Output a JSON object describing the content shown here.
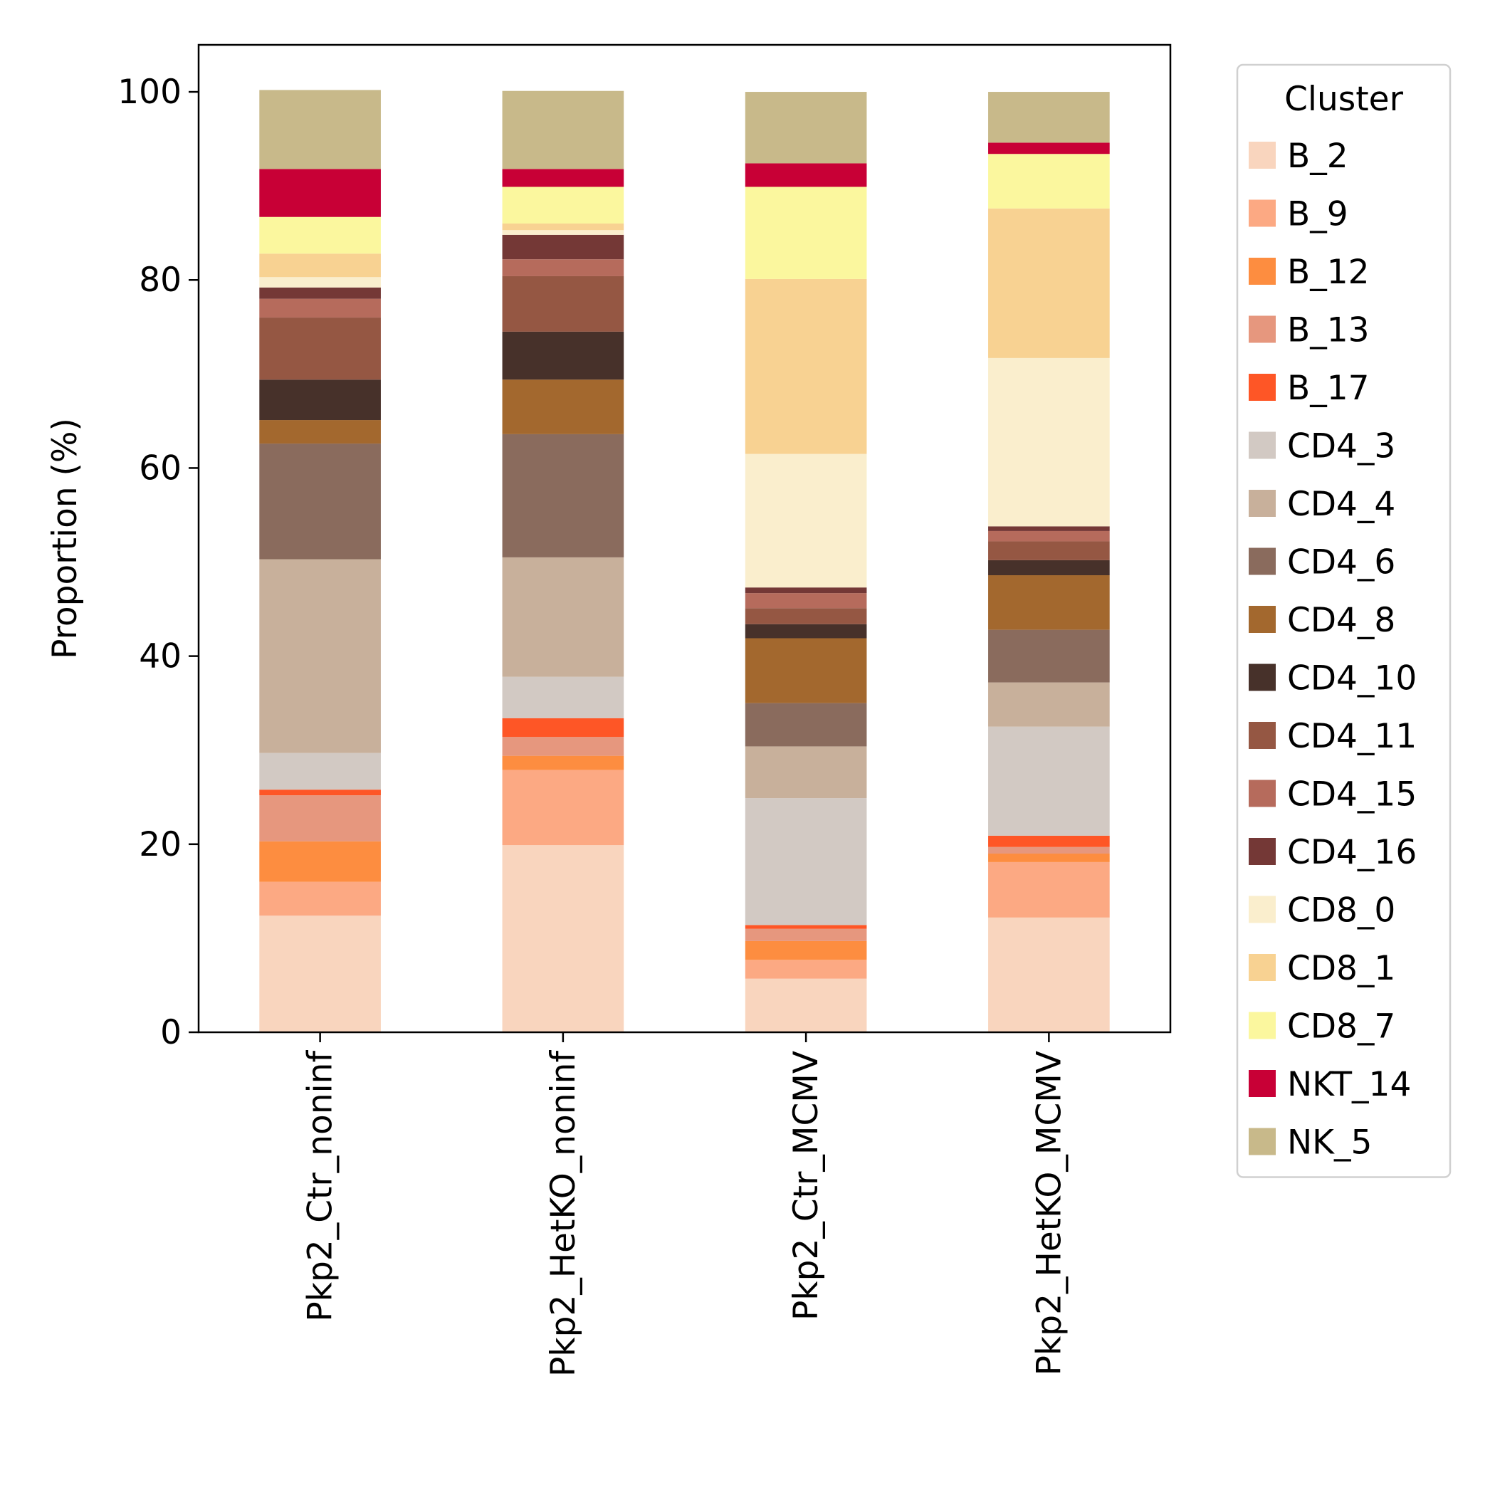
{
  "chart_data": {
    "type": "bar",
    "stacked": true,
    "xlabel": "",
    "ylabel": "Proportion (%)",
    "ylim": [
      0,
      105
    ],
    "yticks": [
      "0",
      "20",
      "40",
      "60",
      "80",
      "100"
    ],
    "grid": false,
    "legend_position": "right, outside",
    "legend_title": "Cluster",
    "categories": [
      "Pkp2_Ctr_noninf",
      "Pkp2_HetKO_noninf",
      "Pkp2_Ctr_MCMV",
      "Pkp2_HetKO_MCMV"
    ],
    "series": [
      {
        "name": "B_2",
        "color": "#f9d5be",
        "values": [
          12.4,
          19.9,
          5.7,
          12.2
        ]
      },
      {
        "name": "B_9",
        "color": "#fca983",
        "values": [
          3.6,
          8.0,
          2.0,
          5.9
        ]
      },
      {
        "name": "B_12",
        "color": "#fd8d40",
        "values": [
          4.3,
          1.5,
          2.0,
          0.9
        ]
      },
      {
        "name": "B_13",
        "color": "#e6977e",
        "values": [
          4.9,
          2.0,
          1.3,
          0.7
        ]
      },
      {
        "name": "B_17",
        "color": "#fe5626",
        "values": [
          0.6,
          2.0,
          0.4,
          1.2
        ]
      },
      {
        "name": "CD4_3",
        "color": "#d2c9c3",
        "values": [
          3.9,
          4.4,
          13.5,
          11.6
        ]
      },
      {
        "name": "CD4_4",
        "color": "#c8b09b",
        "values": [
          20.6,
          12.7,
          5.5,
          4.7
        ]
      },
      {
        "name": "CD4_6",
        "color": "#8a6b5d",
        "values": [
          12.3,
          13.1,
          4.6,
          5.6
        ]
      },
      {
        "name": "CD4_8",
        "color": "#a3682e",
        "values": [
          2.5,
          5.8,
          6.9,
          5.8
        ]
      },
      {
        "name": "CD4_10",
        "color": "#47312a",
        "values": [
          4.3,
          5.1,
          1.5,
          1.6
        ]
      },
      {
        "name": "CD4_11",
        "color": "#955743",
        "values": [
          6.6,
          5.9,
          1.7,
          2.0
        ]
      },
      {
        "name": "CD4_15",
        "color": "#b66b5c",
        "values": [
          2.0,
          1.8,
          1.6,
          1.1
        ]
      },
      {
        "name": "CD4_16",
        "color": "#743836",
        "values": [
          1.2,
          2.6,
          0.6,
          0.5
        ]
      },
      {
        "name": "CD8_0",
        "color": "#faeecd",
        "values": [
          1.1,
          0.5,
          14.2,
          17.9
        ]
      },
      {
        "name": "CD8_1",
        "color": "#f8d292",
        "values": [
          2.5,
          0.7,
          18.6,
          15.9
        ]
      },
      {
        "name": "CD8_7",
        "color": "#fbf79e",
        "values": [
          3.9,
          3.9,
          9.8,
          5.8
        ]
      },
      {
        "name": "NKT_14",
        "color": "#c80036",
        "values": [
          5.1,
          1.9,
          2.5,
          1.2
        ]
      },
      {
        "name": "NK_5",
        "color": "#c8b98a",
        "values": [
          8.4,
          8.3,
          7.6,
          5.4
        ]
      }
    ]
  }
}
